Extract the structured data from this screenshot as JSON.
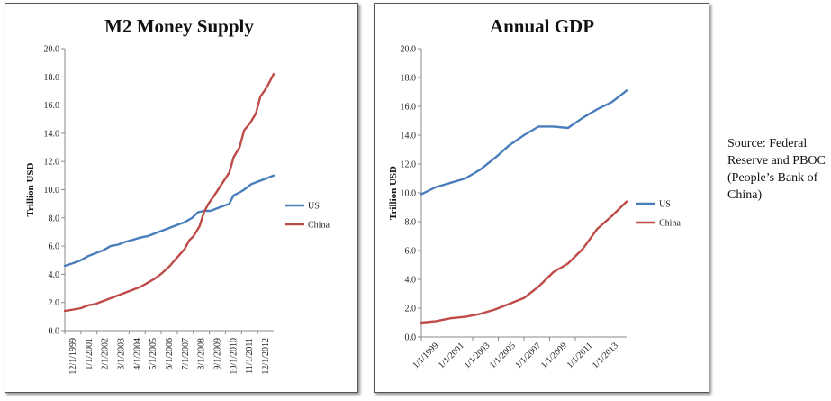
{
  "source_note": "Source: Federal Reserve and PBOC (People’s Bank of China)",
  "chart_data": [
    {
      "type": "line",
      "title": "M2 Money Supply",
      "ylabel": "Trillion USD",
      "xlabel": "",
      "ylim": [
        0,
        20
      ],
      "yticks": [
        "0.0",
        "2.0",
        "4.0",
        "6.0",
        "8.0",
        "10.0",
        "12.0",
        "14.0",
        "16.0",
        "18.0",
        "20.0"
      ],
      "xticks": [
        "12/1/1999",
        "1/1/2001",
        "2/1/2002",
        "3/1/2003",
        "4/1/2004",
        "5/1/2005",
        "6/1/2006",
        "7/1/2007",
        "8/1/2008",
        "9/1/2009",
        "10/1/2010",
        "11/1/2011",
        "12/1/2012"
      ],
      "xrange": [
        1999.917,
        2014.0
      ],
      "grid": false,
      "legend": "right",
      "series": [
        {
          "name": "US",
          "color": "#4a7ebb",
          "x": [
            1999.917,
            2000.5,
            2001.0,
            2001.5,
            2002.0,
            2002.5,
            2003.0,
            2003.5,
            2004.0,
            2004.5,
            2005.0,
            2005.5,
            2006.0,
            2006.5,
            2007.0,
            2007.5,
            2008.0,
            2008.5,
            2008.9,
            2009.3,
            2009.75,
            2010.0,
            2010.5,
            2011.0,
            2011.3,
            2011.7,
            2012.0,
            2012.5,
            2013.0,
            2013.5,
            2014.0
          ],
          "values": [
            4.6,
            4.8,
            5.0,
            5.3,
            5.5,
            5.7,
            6.0,
            6.1,
            6.3,
            6.45,
            6.6,
            6.7,
            6.9,
            7.1,
            7.3,
            7.5,
            7.7,
            8.0,
            8.4,
            8.5,
            8.5,
            8.6,
            8.8,
            9.0,
            9.6,
            9.8,
            10.0,
            10.4,
            10.6,
            10.8,
            11.0
          ]
        },
        {
          "name": "China",
          "color": "#be4b48",
          "x": [
            1999.917,
            2000.5,
            2001.0,
            2001.5,
            2002.0,
            2002.5,
            2003.0,
            2003.5,
            2004.0,
            2004.5,
            2005.0,
            2005.5,
            2006.0,
            2006.5,
            2007.0,
            2007.5,
            2008.0,
            2008.3,
            2008.6,
            2009.0,
            2009.3,
            2009.6,
            2010.0,
            2010.5,
            2011.0,
            2011.3,
            2011.7,
            2012.0,
            2012.4,
            2012.8,
            2013.1,
            2013.5,
            2014.0
          ],
          "values": [
            1.4,
            1.5,
            1.6,
            1.8,
            1.9,
            2.1,
            2.3,
            2.5,
            2.7,
            2.9,
            3.1,
            3.4,
            3.7,
            4.1,
            4.6,
            5.2,
            5.8,
            6.4,
            6.7,
            7.4,
            8.4,
            9.0,
            9.6,
            10.4,
            11.2,
            12.3,
            13.0,
            14.2,
            14.7,
            15.4,
            16.6,
            17.2,
            18.2
          ]
        }
      ]
    },
    {
      "type": "line",
      "title": "Annual GDP",
      "ylabel": "Trillion USD",
      "xlabel": "",
      "ylim": [
        0,
        20
      ],
      "yticks": [
        "0.0",
        "2.0",
        "4.0",
        "6.0",
        "8.0",
        "10.0",
        "12.0",
        "14.0",
        "16.0",
        "18.0",
        "20.0"
      ],
      "xticks": [
        "1/1/1999",
        "1/1/2001",
        "1/1/2003",
        "1/1/2005",
        "1/1/2007",
        "1/1/2009",
        "1/1/2011",
        "1/1/2013"
      ],
      "xrange": [
        1999,
        2013
      ],
      "grid": false,
      "legend": "right",
      "series": [
        {
          "name": "US",
          "color": "#4a7ebb",
          "x": [
            1999,
            2000,
            2001,
            2002,
            2003,
            2004,
            2005,
            2006,
            2007,
            2008,
            2009,
            2010,
            2011,
            2012,
            2013
          ],
          "values": [
            9.9,
            10.4,
            10.7,
            11.0,
            11.6,
            12.4,
            13.3,
            14.0,
            14.6,
            14.6,
            14.5,
            15.2,
            15.8,
            16.3,
            17.1
          ]
        },
        {
          "name": "China",
          "color": "#be4b48",
          "x": [
            1999,
            2000,
            2001,
            2002,
            2003,
            2004,
            2005,
            2006,
            2007,
            2008,
            2009,
            2010,
            2011,
            2012,
            2013
          ],
          "values": [
            1.0,
            1.1,
            1.3,
            1.4,
            1.6,
            1.9,
            2.3,
            2.7,
            3.5,
            4.5,
            5.1,
            6.1,
            7.5,
            8.4,
            9.4
          ]
        }
      ]
    }
  ]
}
